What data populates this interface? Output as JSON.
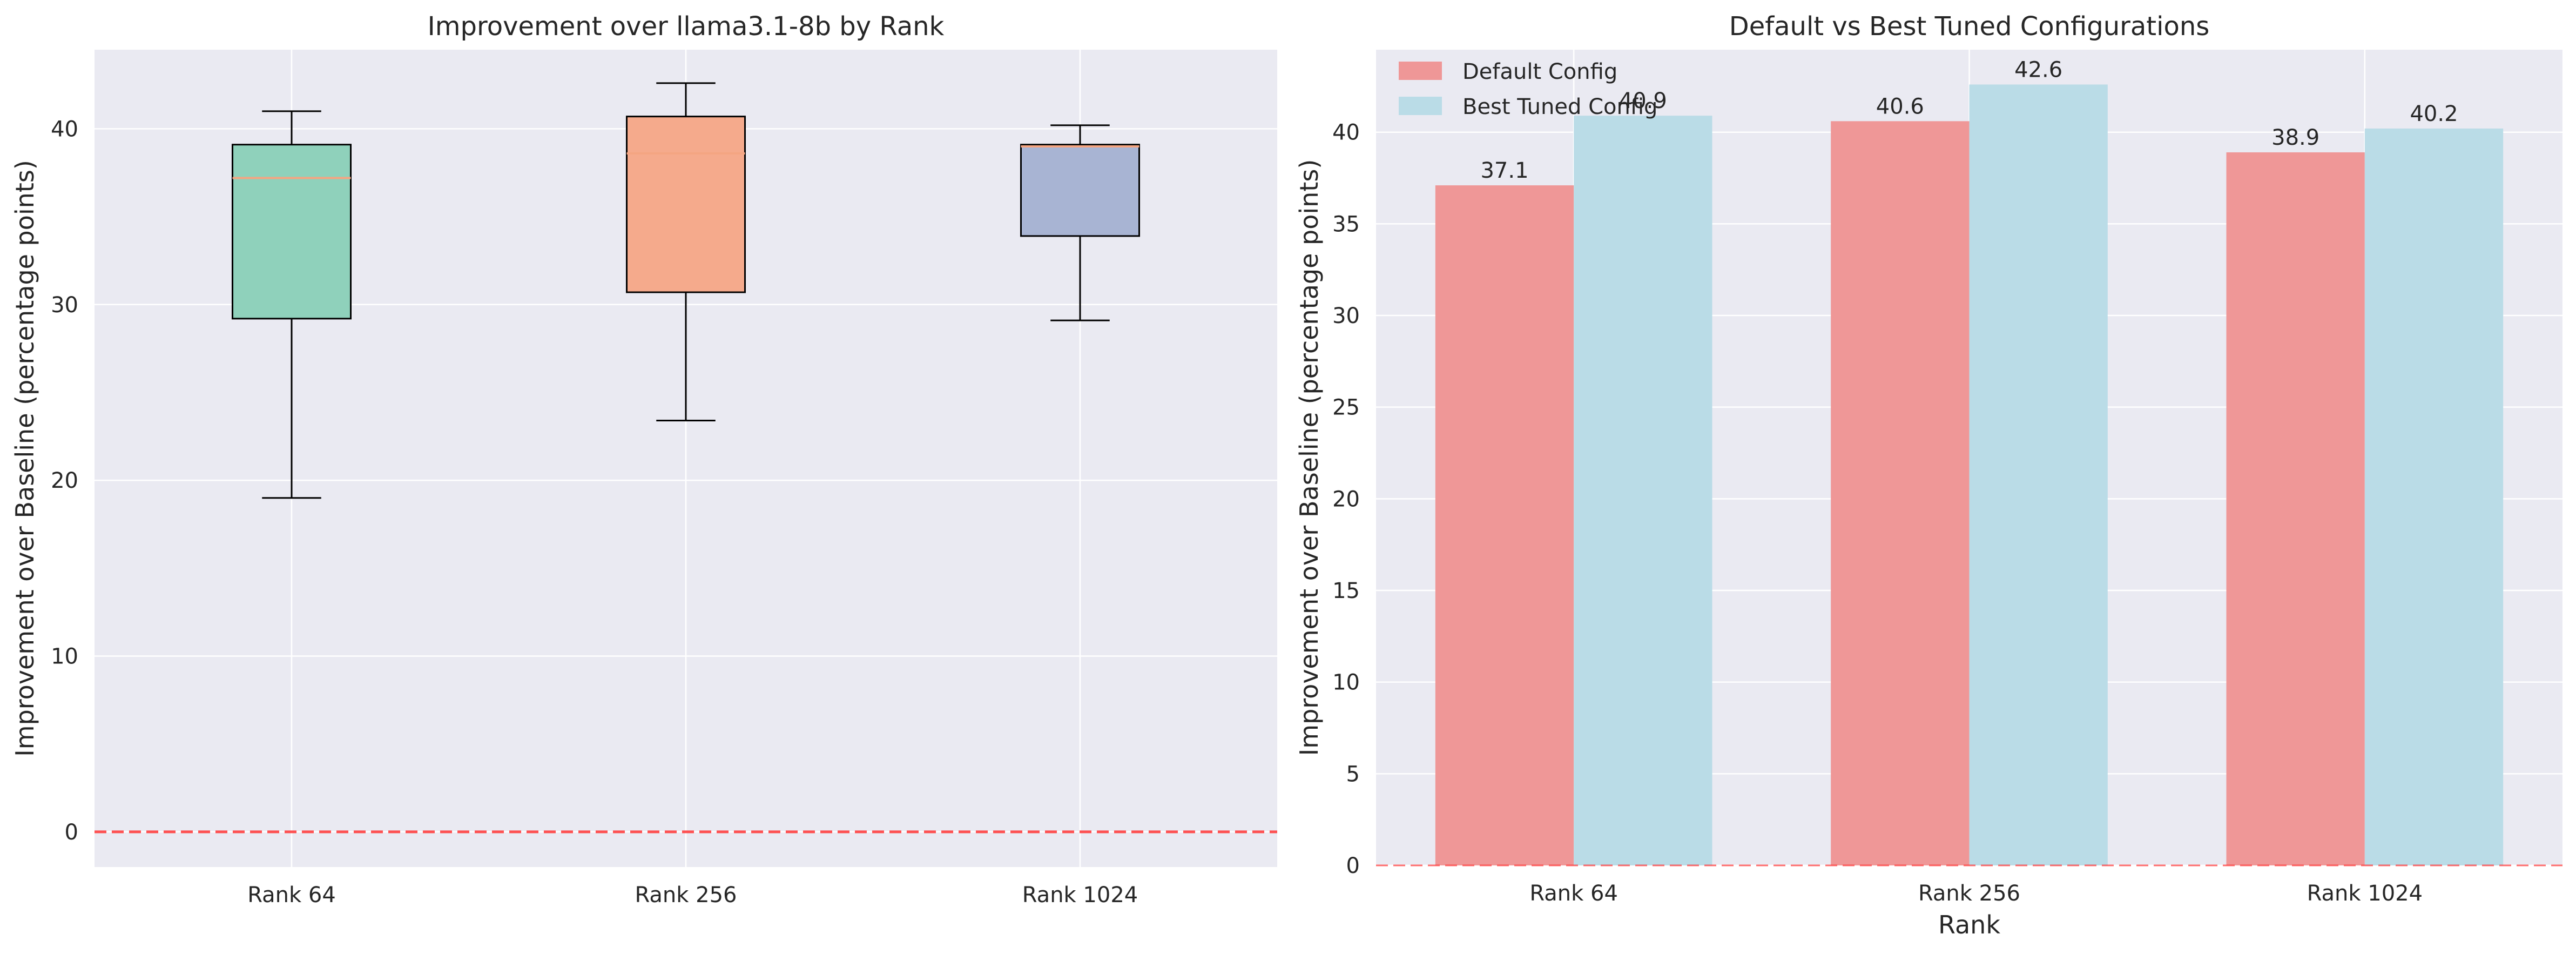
{
  "chart_data": [
    {
      "type": "box",
      "title": "Improvement over llama3.1-8b by Rank",
      "xlabel": "",
      "ylabel": "Improvement over Baseline (percentage points)",
      "categories": [
        "Rank 64",
        "Rank 256",
        "Rank 1024"
      ],
      "ylim": [
        -2,
        44.5
      ],
      "yticks": [
        0,
        10,
        20,
        30,
        40
      ],
      "grid": true,
      "boxes": [
        {
          "category": "Rank 64",
          "whisker_low": 19.0,
          "q1": 29.2,
          "median": 37.2,
          "q3": 39.1,
          "whisker_high": 41.0,
          "color": "#8fd1bb"
        },
        {
          "category": "Rank 256",
          "whisker_low": 23.4,
          "q1": 30.7,
          "median": 38.6,
          "q3": 40.7,
          "whisker_high": 42.6,
          "color": "#f5aa8c"
        },
        {
          "category": "Rank 1024",
          "whisker_low": 29.1,
          "q1": 33.9,
          "median": 39.0,
          "q3": 39.1,
          "whisker_high": 40.2,
          "color": "#a8b4d3"
        }
      ],
      "median_color": "#f4a582",
      "reference_line": {
        "y": 0,
        "color": "#ff3333",
        "style": "dashed"
      }
    },
    {
      "type": "bar",
      "title": "Default vs Best Tuned Configurations",
      "xlabel": "Rank",
      "ylabel": "Improvement over Baseline (percentage points)",
      "categories": [
        "Rank 64",
        "Rank 256",
        "Rank 1024"
      ],
      "ylim": [
        0,
        44.5
      ],
      "yticks": [
        0,
        5,
        10,
        15,
        20,
        25,
        30,
        35,
        40
      ],
      "grid": true,
      "legend": "top-left",
      "series": [
        {
          "name": "Default Config",
          "values": [
            37.1,
            40.6,
            38.9
          ],
          "labels": [
            "37.1",
            "40.6",
            "38.9"
          ],
          "color": "#ef9797"
        },
        {
          "name": "Best Tuned Config",
          "values": [
            40.9,
            42.6,
            40.2
          ],
          "labels": [
            "40.9",
            "42.6",
            "40.2"
          ],
          "color": "#badce7"
        }
      ],
      "reference_line": {
        "y": 0,
        "color": "#ff3333",
        "style": "dashed"
      }
    }
  ]
}
